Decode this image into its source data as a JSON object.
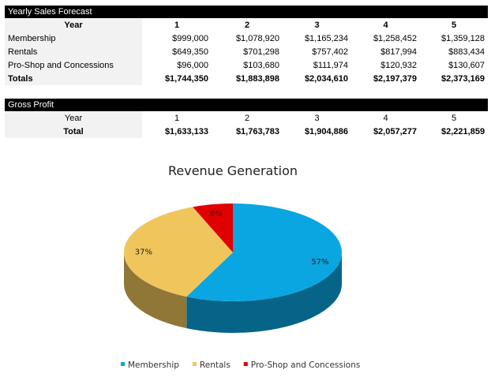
{
  "sales_table": {
    "title": "Yearly Sales Forecast",
    "header": [
      "Year",
      "1",
      "2",
      "3",
      "4",
      "5"
    ],
    "rows": [
      [
        "Membership",
        "$999,000",
        "$1,078,920",
        "$1,165,234",
        "$1,258,452",
        "$1,359,128"
      ],
      [
        "Rentals",
        "$649,350",
        "$701,298",
        "$757,402",
        "$817,994",
        "$883,434"
      ],
      [
        "Pro-Shop and Concessions",
        "$96,000",
        "$103,680",
        "$111,974",
        "$120,932",
        "$130,607"
      ],
      [
        "Totals",
        "$1,744,350",
        "$1,883,898",
        "$2,034,610",
        "$2,197,379",
        "$2,373,169"
      ]
    ]
  },
  "profit_table": {
    "title": "Gross Profit",
    "header": [
      "Year",
      "1",
      "2",
      "3",
      "4",
      "5"
    ],
    "rows": [
      [
        "Total",
        "$1,633,133",
        "$1,763,783",
        "$1,904,886",
        "$2,057,277",
        "$2,221,859"
      ]
    ]
  },
  "chart_data": {
    "type": "pie",
    "title": "Revenue Generation",
    "categories": [
      "Membership",
      "Rentals",
      "Pro-Shop and Concessions"
    ],
    "values": [
      57,
      37,
      6
    ],
    "value_labels": [
      "57%",
      "37%",
      "6%"
    ],
    "colors": [
      "#0aa6e2",
      "#f0c55c",
      "#e00000"
    ]
  }
}
